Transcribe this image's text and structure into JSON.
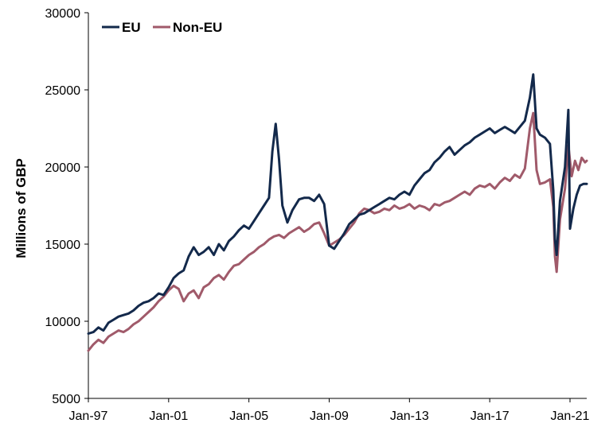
{
  "chart_data": {
    "type": "line",
    "xlabel": "",
    "ylabel": "Millions of GBP",
    "ylim": [
      5000,
      30000
    ],
    "yticks": [
      "5000",
      "10000",
      "15000",
      "20000",
      "25000",
      "30000"
    ],
    "xlim": [
      "1997-01",
      "2021-11"
    ],
    "xticks": [
      {
        "label": "Jan-97",
        "date": "1997-01"
      },
      {
        "label": "Jan-01",
        "date": "2001-01"
      },
      {
        "label": "Jan-05",
        "date": "2005-01"
      },
      {
        "label": "Jan-09",
        "date": "2009-01"
      },
      {
        "label": "Jan-13",
        "date": "2013-01"
      },
      {
        "label": "Jan-17",
        "date": "2017-01"
      },
      {
        "label": "Jan-21",
        "date": "2021-01"
      }
    ],
    "grid": false,
    "legend_position": "top-left",
    "series": [
      {
        "name": "EU",
        "color": "#13294b",
        "points": [
          [
            "1997-01",
            9200
          ],
          [
            "1997-04",
            9300
          ],
          [
            "1997-07",
            9600
          ],
          [
            "1997-10",
            9400
          ],
          [
            "1998-01",
            9900
          ],
          [
            "1998-04",
            10100
          ],
          [
            "1998-07",
            10300
          ],
          [
            "1998-10",
            10400
          ],
          [
            "1999-01",
            10500
          ],
          [
            "1999-04",
            10700
          ],
          [
            "1999-07",
            11000
          ],
          [
            "1999-10",
            11200
          ],
          [
            "2000-01",
            11300
          ],
          [
            "2000-04",
            11500
          ],
          [
            "2000-07",
            11800
          ],
          [
            "2000-10",
            11700
          ],
          [
            "2001-01",
            12200
          ],
          [
            "2001-04",
            12800
          ],
          [
            "2001-07",
            13100
          ],
          [
            "2001-10",
            13300
          ],
          [
            "2002-01",
            14200
          ],
          [
            "2002-04",
            14800
          ],
          [
            "2002-07",
            14300
          ],
          [
            "2002-10",
            14500
          ],
          [
            "2003-01",
            14800
          ],
          [
            "2003-04",
            14300
          ],
          [
            "2003-07",
            15000
          ],
          [
            "2003-10",
            14600
          ],
          [
            "2004-01",
            15200
          ],
          [
            "2004-04",
            15500
          ],
          [
            "2004-07",
            15900
          ],
          [
            "2004-10",
            16200
          ],
          [
            "2005-01",
            16000
          ],
          [
            "2005-04",
            16500
          ],
          [
            "2005-07",
            17000
          ],
          [
            "2005-10",
            17500
          ],
          [
            "2006-01",
            18000
          ],
          [
            "2006-03",
            21000
          ],
          [
            "2006-05",
            22800
          ],
          [
            "2006-07",
            20500
          ],
          [
            "2006-09",
            17500
          ],
          [
            "2006-12",
            16400
          ],
          [
            "2007-03",
            17200
          ],
          [
            "2007-07",
            17900
          ],
          [
            "2007-10",
            18000
          ],
          [
            "2008-01",
            18000
          ],
          [
            "2008-04",
            17800
          ],
          [
            "2008-07",
            18200
          ],
          [
            "2008-10",
            17600
          ],
          [
            "2009-01",
            14900
          ],
          [
            "2009-04",
            14700
          ],
          [
            "2009-07",
            15200
          ],
          [
            "2009-10",
            15700
          ],
          [
            "2010-01",
            16300
          ],
          [
            "2010-04",
            16600
          ],
          [
            "2010-07",
            16900
          ],
          [
            "2010-10",
            17000
          ],
          [
            "2011-01",
            17200
          ],
          [
            "2011-04",
            17400
          ],
          [
            "2011-07",
            17600
          ],
          [
            "2011-10",
            17800
          ],
          [
            "2012-01",
            18000
          ],
          [
            "2012-04",
            17900
          ],
          [
            "2012-07",
            18200
          ],
          [
            "2012-10",
            18400
          ],
          [
            "2013-01",
            18200
          ],
          [
            "2013-04",
            18800
          ],
          [
            "2013-07",
            19200
          ],
          [
            "2013-10",
            19600
          ],
          [
            "2014-01",
            19800
          ],
          [
            "2014-04",
            20300
          ],
          [
            "2014-07",
            20600
          ],
          [
            "2014-10",
            21000
          ],
          [
            "2015-01",
            21300
          ],
          [
            "2015-04",
            20800
          ],
          [
            "2015-07",
            21100
          ],
          [
            "2015-10",
            21400
          ],
          [
            "2016-01",
            21600
          ],
          [
            "2016-04",
            21900
          ],
          [
            "2016-07",
            22100
          ],
          [
            "2016-10",
            22300
          ],
          [
            "2017-01",
            22500
          ],
          [
            "2017-04",
            22200
          ],
          [
            "2017-07",
            22400
          ],
          [
            "2017-10",
            22600
          ],
          [
            "2018-01",
            22400
          ],
          [
            "2018-04",
            22200
          ],
          [
            "2018-07",
            22600
          ],
          [
            "2018-10",
            23000
          ],
          [
            "2019-01",
            24500
          ],
          [
            "2019-03",
            26000
          ],
          [
            "2019-05",
            22500
          ],
          [
            "2019-07",
            22100
          ],
          [
            "2019-10",
            21900
          ],
          [
            "2020-01",
            21500
          ],
          [
            "2020-03",
            18500
          ],
          [
            "2020-04",
            15300
          ],
          [
            "2020-05",
            14300
          ],
          [
            "2020-07",
            17800
          ],
          [
            "2020-10",
            20000
          ],
          [
            "2020-12",
            23700
          ],
          [
            "2021-01",
            16000
          ],
          [
            "2021-03",
            17300
          ],
          [
            "2021-05",
            18200
          ],
          [
            "2021-07",
            18800
          ],
          [
            "2021-09",
            18900
          ],
          [
            "2021-11",
            18900
          ]
        ]
      },
      {
        "name": "Non-EU",
        "color": "#a05a6a",
        "points": [
          [
            "1997-01",
            8100
          ],
          [
            "1997-04",
            8500
          ],
          [
            "1997-07",
            8800
          ],
          [
            "1997-10",
            8600
          ],
          [
            "1998-01",
            9000
          ],
          [
            "1998-04",
            9200
          ],
          [
            "1998-07",
            9400
          ],
          [
            "1998-10",
            9300
          ],
          [
            "1999-01",
            9500
          ],
          [
            "1999-04",
            9800
          ],
          [
            "1999-07",
            10000
          ],
          [
            "1999-10",
            10300
          ],
          [
            "2000-01",
            10600
          ],
          [
            "2000-04",
            10900
          ],
          [
            "2000-07",
            11300
          ],
          [
            "2000-10",
            11600
          ],
          [
            "2001-01",
            12000
          ],
          [
            "2001-04",
            12300
          ],
          [
            "2001-07",
            12100
          ],
          [
            "2001-10",
            11300
          ],
          [
            "2002-01",
            11800
          ],
          [
            "2002-04",
            12000
          ],
          [
            "2002-07",
            11500
          ],
          [
            "2002-10",
            12200
          ],
          [
            "2003-01",
            12400
          ],
          [
            "2003-04",
            12800
          ],
          [
            "2003-07",
            13000
          ],
          [
            "2003-10",
            12700
          ],
          [
            "2004-01",
            13200
          ],
          [
            "2004-04",
            13600
          ],
          [
            "2004-07",
            13700
          ],
          [
            "2004-10",
            14000
          ],
          [
            "2005-01",
            14300
          ],
          [
            "2005-04",
            14500
          ],
          [
            "2005-07",
            14800
          ],
          [
            "2005-10",
            15000
          ],
          [
            "2006-01",
            15300
          ],
          [
            "2006-04",
            15500
          ],
          [
            "2006-07",
            15600
          ],
          [
            "2006-10",
            15400
          ],
          [
            "2007-01",
            15700
          ],
          [
            "2007-04",
            15900
          ],
          [
            "2007-07",
            16100
          ],
          [
            "2007-10",
            15800
          ],
          [
            "2008-01",
            16000
          ],
          [
            "2008-04",
            16300
          ],
          [
            "2008-07",
            16400
          ],
          [
            "2008-10",
            15700
          ],
          [
            "2009-01",
            14900
          ],
          [
            "2009-04",
            15100
          ],
          [
            "2009-07",
            15300
          ],
          [
            "2009-10",
            15600
          ],
          [
            "2010-01",
            16000
          ],
          [
            "2010-04",
            16400
          ],
          [
            "2010-07",
            17000
          ],
          [
            "2010-10",
            17300
          ],
          [
            "2011-01",
            17200
          ],
          [
            "2011-04",
            17000
          ],
          [
            "2011-07",
            17100
          ],
          [
            "2011-10",
            17300
          ],
          [
            "2012-01",
            17200
          ],
          [
            "2012-04",
            17500
          ],
          [
            "2012-07",
            17300
          ],
          [
            "2012-10",
            17400
          ],
          [
            "2013-01",
            17600
          ],
          [
            "2013-04",
            17300
          ],
          [
            "2013-07",
            17500
          ],
          [
            "2013-10",
            17400
          ],
          [
            "2014-01",
            17200
          ],
          [
            "2014-04",
            17600
          ],
          [
            "2014-07",
            17500
          ],
          [
            "2014-10",
            17700
          ],
          [
            "2015-01",
            17800
          ],
          [
            "2015-04",
            18000
          ],
          [
            "2015-07",
            18200
          ],
          [
            "2015-10",
            18400
          ],
          [
            "2016-01",
            18200
          ],
          [
            "2016-04",
            18600
          ],
          [
            "2016-07",
            18800
          ],
          [
            "2016-10",
            18700
          ],
          [
            "2017-01",
            18900
          ],
          [
            "2017-04",
            18600
          ],
          [
            "2017-07",
            19000
          ],
          [
            "2017-10",
            19300
          ],
          [
            "2018-01",
            19100
          ],
          [
            "2018-04",
            19500
          ],
          [
            "2018-07",
            19300
          ],
          [
            "2018-10",
            19900
          ],
          [
            "2019-01",
            22500
          ],
          [
            "2019-03",
            23500
          ],
          [
            "2019-05",
            19800
          ],
          [
            "2019-07",
            18900
          ],
          [
            "2019-10",
            19000
          ],
          [
            "2020-01",
            19200
          ],
          [
            "2020-03",
            17400
          ],
          [
            "2020-04",
            14200
          ],
          [
            "2020-05",
            13200
          ],
          [
            "2020-07",
            16600
          ],
          [
            "2020-10",
            18600
          ],
          [
            "2020-12",
            21400
          ],
          [
            "2021-02",
            19400
          ],
          [
            "2021-04",
            20400
          ],
          [
            "2021-06",
            19800
          ],
          [
            "2021-08",
            20600
          ],
          [
            "2021-10",
            20300
          ],
          [
            "2021-11",
            20400
          ]
        ]
      }
    ]
  }
}
